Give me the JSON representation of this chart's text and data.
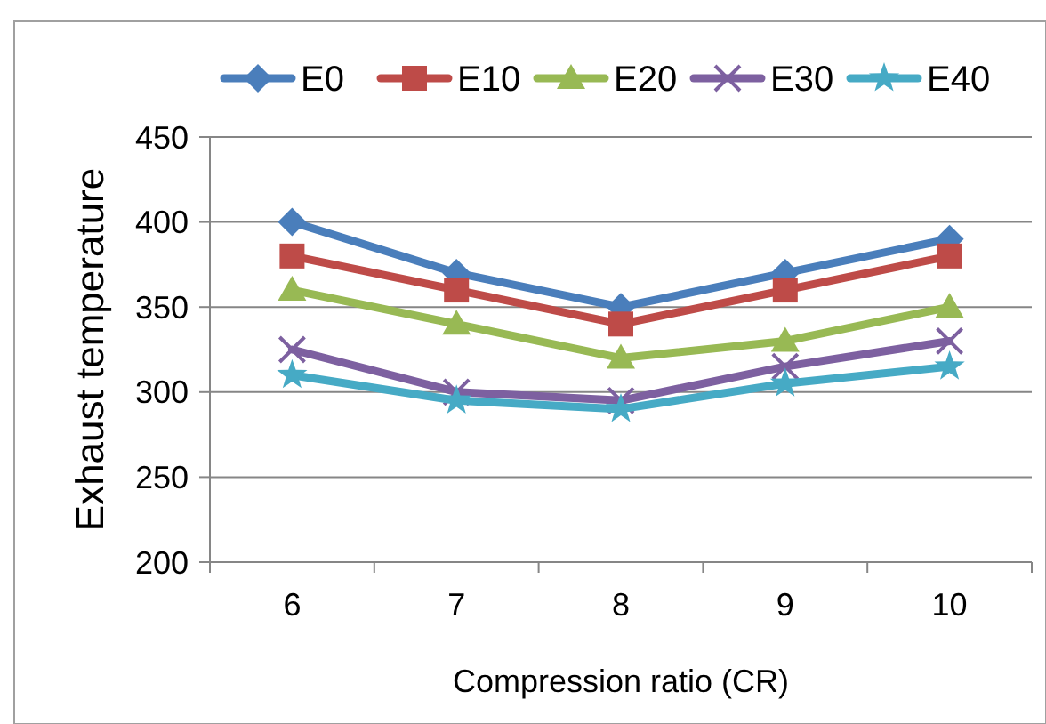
{
  "chart_data": {
    "type": "line",
    "xlabel": "Compression ratio (CR)",
    "ylabel": "Exhaust  temperature",
    "categories": [
      "6",
      "7",
      "8",
      "9",
      "10"
    ],
    "ylim": [
      200,
      450
    ],
    "yticks": [
      200,
      250,
      300,
      350,
      400,
      450
    ],
    "grid": "y",
    "legend": "top",
    "line_style": "solid",
    "series": [
      {
        "name": "E0",
        "color": "#4a7ebb",
        "marker": "diamond",
        "values": [
          400,
          370,
          350,
          370,
          390
        ]
      },
      {
        "name": "E10",
        "color": "#be4b48",
        "marker": "square",
        "values": [
          380,
          360,
          340,
          360,
          380
        ]
      },
      {
        "name": "E20",
        "color": "#98b954",
        "marker": "triangle",
        "values": [
          360,
          340,
          320,
          330,
          350
        ]
      },
      {
        "name": "E30",
        "color": "#7d60a0",
        "marker": "cross",
        "values": [
          325,
          300,
          295,
          315,
          330
        ]
      },
      {
        "name": "E40",
        "color": "#46aac5",
        "marker": "star",
        "values": [
          310,
          295,
          290,
          305,
          315
        ]
      }
    ]
  }
}
